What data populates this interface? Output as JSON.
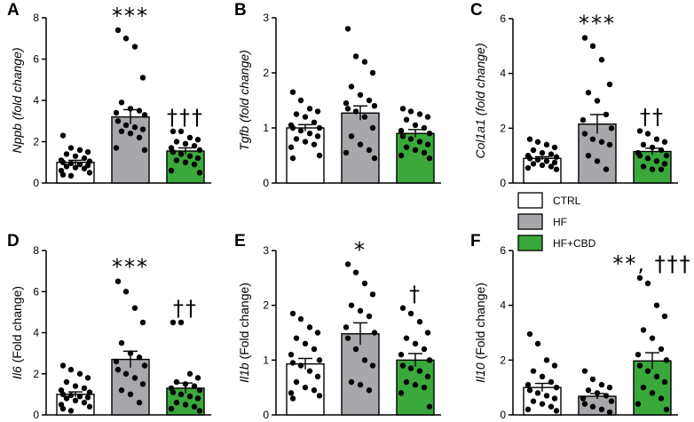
{
  "colors": {
    "CTRL": "#ffffff",
    "HF": "#a8a8ac",
    "HF+CBD": "#3aa83a"
  },
  "legend": [
    {
      "label": "CTRL",
      "color": "#ffffff"
    },
    {
      "label": "HF",
      "color": "#a8a8ac"
    },
    {
      "label": "HF+CBD",
      "color": "#3aa83a"
    }
  ],
  "chart_data": [
    {
      "panel": "A",
      "type": "bar",
      "ylabel_italic": "Nppb",
      "ylabel_rest": " (fold change)",
      "ylabel_all_italic": true,
      "ylim": [
        0,
        8
      ],
      "yticks": [
        0,
        2,
        4,
        6,
        8
      ],
      "categories": [
        "CTRL",
        "HF",
        "HF+CBD"
      ],
      "values": [
        1.0,
        3.2,
        1.55
      ],
      "sem": [
        0.1,
        0.35,
        0.15
      ],
      "points": [
        [
          2.3,
          1.7,
          1.6,
          1.5,
          1.4,
          1.3,
          1.2,
          1.1,
          1.05,
          1.0,
          0.95,
          0.9,
          0.85,
          0.8,
          0.75,
          0.7,
          0.6,
          0.5,
          0.4,
          0.35
        ],
        [
          7.4,
          7.0,
          6.6,
          5.1,
          3.9,
          3.6,
          3.5,
          3.4,
          3.3,
          3.0,
          2.8,
          2.7,
          2.6,
          2.5,
          2.4,
          2.2,
          1.7,
          1.6
        ],
        [
          2.5,
          2.5,
          2.2,
          2.1,
          2.0,
          1.9,
          1.8,
          1.7,
          1.6,
          1.5,
          1.4,
          1.3,
          1.2,
          1.1,
          1.0,
          0.9,
          0.6,
          0.5
        ]
      ],
      "annotations": [
        "",
        "***",
        "†††"
      ]
    },
    {
      "panel": "B",
      "type": "bar",
      "ylabel_italic": "Tgfb",
      "ylabel_rest": " (fold change)",
      "ylabel_all_italic": true,
      "ylim": [
        0,
        3
      ],
      "yticks": [
        0,
        1,
        2,
        3
      ],
      "categories": [
        "CTRL",
        "HF",
        "HF+CBD"
      ],
      "values": [
        1.0,
        1.27,
        0.9
      ],
      "sem": [
        0.06,
        0.13,
        0.07
      ],
      "points": [
        [
          1.65,
          1.5,
          1.35,
          1.3,
          1.25,
          1.2,
          1.1,
          1.05,
          1.0,
          1.0,
          0.95,
          0.9,
          0.85,
          0.8,
          0.75,
          0.7,
          0.65,
          0.5,
          0.45
        ],
        [
          2.8,
          2.3,
          2.2,
          2.0,
          1.75,
          1.6,
          1.5,
          1.45,
          1.4,
          1.35,
          1.3,
          1.2,
          1.0,
          0.85,
          0.7,
          0.6,
          0.55,
          0.45
        ],
        [
          1.35,
          1.3,
          1.25,
          1.2,
          1.15,
          1.05,
          1.0,
          0.95,
          0.9,
          0.85,
          0.8,
          0.75,
          0.7,
          0.65,
          0.6,
          0.55,
          0.5,
          0.45
        ]
      ],
      "annotations": [
        "",
        "",
        ""
      ]
    },
    {
      "panel": "C",
      "type": "bar",
      "ylabel_italic": "Col1a1",
      "ylabel_rest": " (fold change)",
      "ylabel_all_italic": true,
      "ylim": [
        0,
        6
      ],
      "yticks": [
        0,
        2,
        4,
        6
      ],
      "categories": [
        "CTRL",
        "HF",
        "HF+CBD"
      ],
      "values": [
        0.9,
        2.15,
        1.15
      ],
      "sem": [
        0.06,
        0.35,
        0.12
      ],
      "points": [
        [
          1.6,
          1.5,
          1.4,
          1.3,
          1.2,
          1.1,
          1.05,
          1.0,
          0.95,
          0.9,
          0.85,
          0.8,
          0.75,
          0.7,
          0.65,
          0.6,
          0.55,
          0.5
        ],
        [
          5.3,
          5.0,
          4.5,
          3.6,
          3.3,
          3.0,
          2.5,
          2.3,
          2.0,
          1.8,
          1.6,
          1.5,
          1.4,
          1.0,
          0.8,
          0.5
        ],
        [
          1.9,
          1.8,
          1.6,
          1.5,
          1.4,
          1.3,
          1.2,
          1.1,
          1.0,
          1.0,
          0.9,
          0.8,
          0.7,
          0.6,
          0.5,
          0.5
        ]
      ],
      "annotations": [
        "",
        "***",
        "††"
      ]
    },
    {
      "panel": "D",
      "type": "bar",
      "ylabel_italic": "Il6",
      "ylabel_rest": " (Fold change)",
      "ylabel_all_italic": false,
      "ylim": [
        0,
        8
      ],
      "yticks": [
        0,
        2,
        4,
        6,
        8
      ],
      "categories": [
        "CTRL",
        "HF",
        "HF+CBD"
      ],
      "values": [
        1.0,
        2.7,
        1.3
      ],
      "sem": [
        0.12,
        0.4,
        0.25
      ],
      "points": [
        [
          2.4,
          2.2,
          2.0,
          1.8,
          1.6,
          1.4,
          1.3,
          1.2,
          1.1,
          1.0,
          0.95,
          0.9,
          0.85,
          0.8,
          0.7,
          0.6,
          0.5,
          0.4,
          0.3,
          0.2
        ],
        [
          6.5,
          6.0,
          5.2,
          4.5,
          3.5,
          3.0,
          2.8,
          2.6,
          2.4,
          2.2,
          2.0,
          1.8,
          1.5,
          1.2,
          1.0,
          0.6
        ],
        [
          4.5,
          4.5,
          2.0,
          1.8,
          1.6,
          1.5,
          1.4,
          1.3,
          1.2,
          1.1,
          1.0,
          0.9,
          0.8,
          0.6,
          0.5,
          0.4,
          0.3,
          0.2
        ]
      ],
      "annotations": [
        "",
        "***",
        "††"
      ]
    },
    {
      "panel": "E",
      "type": "bar",
      "ylabel_italic": "Il1b",
      "ylabel_rest": " (Fold change)",
      "ylabel_all_italic": false,
      "ylim": [
        0,
        3
      ],
      "yticks": [
        0,
        1,
        2,
        3
      ],
      "categories": [
        "CTRL",
        "HF",
        "HF+CBD"
      ],
      "values": [
        0.93,
        1.48,
        1.0
      ],
      "sem": [
        0.1,
        0.2,
        0.12
      ],
      "points": [
        [
          1.85,
          1.75,
          1.6,
          1.5,
          1.4,
          1.3,
          1.2,
          1.1,
          1.0,
          0.95,
          0.9,
          0.8,
          0.7,
          0.6,
          0.5,
          0.45,
          0.4,
          0.35,
          0.3
        ],
        [
          2.75,
          2.6,
          2.4,
          2.2,
          2.0,
          1.9,
          1.8,
          1.6,
          1.5,
          1.4,
          1.2,
          1.0,
          0.9,
          0.6,
          0.55,
          0.45
        ],
        [
          1.95,
          1.85,
          1.7,
          1.5,
          1.4,
          1.3,
          1.2,
          1.1,
          1.0,
          0.9,
          0.85,
          0.8,
          0.7,
          0.6,
          0.55,
          0.5,
          0.4,
          0.15
        ]
      ],
      "annotations": [
        "",
        "*",
        "†"
      ]
    },
    {
      "panel": "F",
      "type": "bar",
      "ylabel_italic": "Il10",
      "ylabel_rest": " (Fold change)",
      "ylabel_all_italic": false,
      "ylim": [
        0,
        6
      ],
      "yticks": [
        0,
        2,
        4,
        6
      ],
      "categories": [
        "CTRL",
        "HF",
        "HF+CBD"
      ],
      "values": [
        1.0,
        0.68,
        1.97
      ],
      "sem": [
        0.15,
        0.1,
        0.3
      ],
      "points": [
        [
          2.95,
          2.6,
          2.0,
          1.8,
          1.6,
          1.4,
          1.2,
          1.1,
          1.0,
          0.9,
          0.8,
          0.7,
          0.6,
          0.5,
          0.4,
          0.3,
          0.2,
          0.15
        ],
        [
          1.6,
          1.3,
          1.1,
          1.0,
          0.9,
          0.8,
          0.7,
          0.6,
          0.5,
          0.4,
          0.3,
          0.2,
          0.1
        ],
        [
          5.0,
          4.8,
          4.0,
          3.6,
          3.1,
          2.8,
          2.4,
          2.2,
          2.0,
          1.8,
          1.6,
          1.4,
          1.2,
          1.0,
          0.8,
          0.6,
          0.4,
          0.2
        ]
      ],
      "annotations": [
        "",
        "",
        "**, †††"
      ]
    }
  ]
}
